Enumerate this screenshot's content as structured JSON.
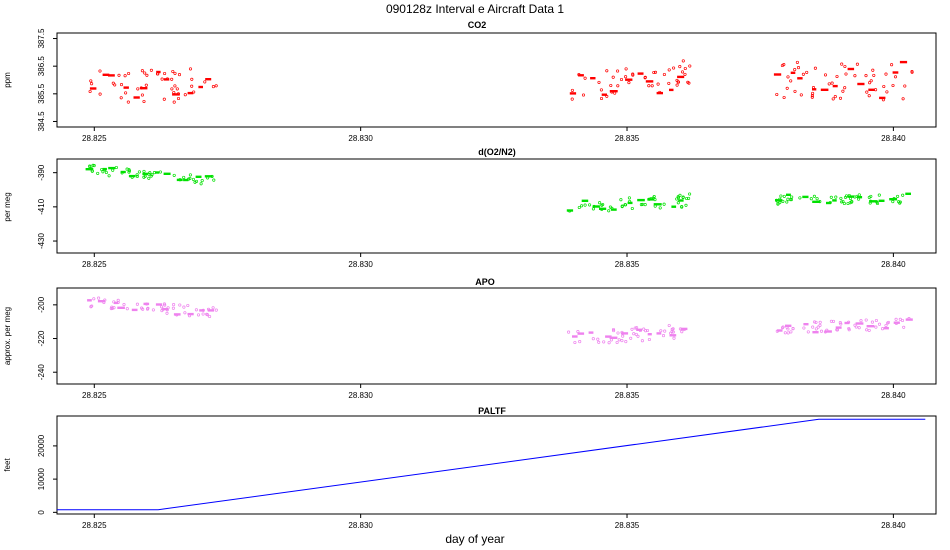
{
  "figure": {
    "title": "090128z   Interval e Aircraft Data 1",
    "xlabel": "day of year"
  },
  "chart_data": [
    {
      "type": "scatter",
      "title": "CO2",
      "ylabel": "ppm",
      "color": "#ff0000",
      "xlim": [
        28.8243,
        28.8408
      ],
      "ylim": [
        384.3,
        387.7
      ],
      "xticks": [
        28.825,
        28.83,
        28.835,
        28.84
      ],
      "xtick_labels": [
        "28.825",
        "28.830",
        "28.835",
        "28.840"
      ],
      "yticks": [
        384.5,
        385.5,
        386.5,
        387.5
      ],
      "ytick_labels": [
        "384.5",
        "385.5",
        "386.5",
        "387.5"
      ],
      "segments": [
        {
          "x0": 28.8249,
          "x1": 28.8273,
          "y0": 385.8,
          "y1": 385.8,
          "amp": 0.3,
          "noise": 0.55
        },
        {
          "x0": 28.8339,
          "x1": 28.8362,
          "y0": 385.7,
          "y1": 386.2,
          "amp": 0.35,
          "noise": 0.5
        },
        {
          "x0": 28.8378,
          "x1": 28.8404,
          "y0": 386.0,
          "y1": 385.9,
          "amp": 0.45,
          "noise": 0.6
        }
      ]
    },
    {
      "type": "scatter",
      "title": "d(O2/N2)",
      "ylabel": "per meg",
      "color": "#00e000",
      "xlim": [
        28.8243,
        28.8408
      ],
      "ylim": [
        -437,
        -382
      ],
      "xticks": [
        28.825,
        28.83,
        28.835,
        28.84
      ],
      "xtick_labels": [
        "28.825",
        "28.830",
        "28.835",
        "28.840"
      ],
      "yticks": [
        -430,
        -410,
        -390
      ],
      "ytick_labels": [
        "-430",
        "-410",
        "-390"
      ],
      "segments": [
        {
          "x0": 28.8249,
          "x1": 28.8273,
          "y0": -388,
          "y1": -395,
          "amp": 1.5,
          "noise": 2.5
        },
        {
          "x0": 28.8339,
          "x1": 28.8362,
          "y0": -411,
          "y1": -406,
          "amp": 3,
          "noise": 3.5
        },
        {
          "x0": 28.8378,
          "x1": 28.8404,
          "y0": -406,
          "y1": -405,
          "amp": 2,
          "noise": 2.5
        }
      ]
    },
    {
      "type": "scatter",
      "title": "APO",
      "ylabel": "approx. per meg",
      "color": "#ee82ee",
      "xlim": [
        28.8243,
        28.8408
      ],
      "ylim": [
        -247,
        -190
      ],
      "xticks": [
        28.825,
        28.83,
        28.835,
        28.84
      ],
      "xtick_labels": [
        "28.825",
        "28.830",
        "28.835",
        "28.840"
      ],
      "yticks": [
        -240,
        -220,
        -200
      ],
      "ytick_labels": [
        "-240",
        "-220",
        "-200"
      ],
      "segments": [
        {
          "x0": 28.8249,
          "x1": 28.8273,
          "y0": -198,
          "y1": -205,
          "amp": 2,
          "noise": 3
        },
        {
          "x0": 28.8339,
          "x1": 28.8362,
          "y0": -220,
          "y1": -215,
          "amp": 3,
          "noise": 4
        },
        {
          "x0": 28.8378,
          "x1": 28.8404,
          "y0": -214,
          "y1": -211,
          "amp": 2.5,
          "noise": 3
        }
      ]
    },
    {
      "type": "line",
      "title": "PALTF",
      "ylabel": "feet",
      "color": "#0000ff",
      "xlim": [
        28.8243,
        28.8408
      ],
      "ylim": [
        -500,
        29000
      ],
      "xticks": [
        28.825,
        28.83,
        28.835,
        28.84
      ],
      "xtick_labels": [
        "28.825",
        "28.830",
        "28.835",
        "28.840"
      ],
      "yticks": [
        0,
        10000,
        20000
      ],
      "ytick_labels": [
        "0",
        "10000",
        "20000"
      ],
      "x": [
        28.8243,
        28.8262,
        28.8386,
        28.8406
      ],
      "y": [
        800,
        800,
        28000,
        28000
      ]
    }
  ]
}
